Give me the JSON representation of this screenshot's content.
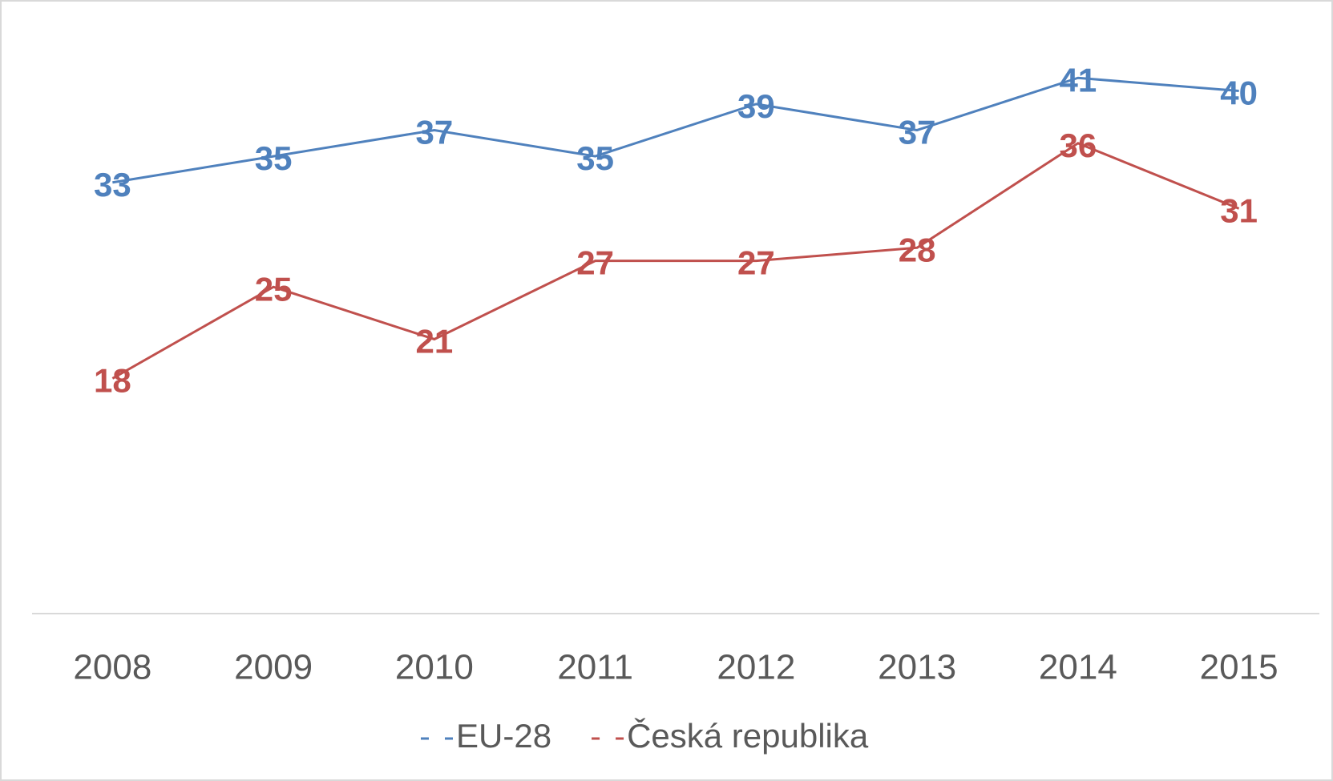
{
  "chart_data": {
    "type": "line",
    "categories": [
      "2008",
      "2009",
      "2010",
      "2011",
      "2012",
      "2013",
      "2014",
      "2015"
    ],
    "series": [
      {
        "name": "EU-28",
        "color": "#4f81bd",
        "values": [
          33,
          35,
          37,
          35,
          39,
          37,
          41,
          40
        ]
      },
      {
        "name": "Česká republika",
        "color": "#c0504d",
        "values": [
          18,
          25,
          21,
          27,
          27,
          28,
          36,
          31
        ]
      }
    ],
    "ylim": [
      0,
      45
    ],
    "legend": "bottom"
  }
}
